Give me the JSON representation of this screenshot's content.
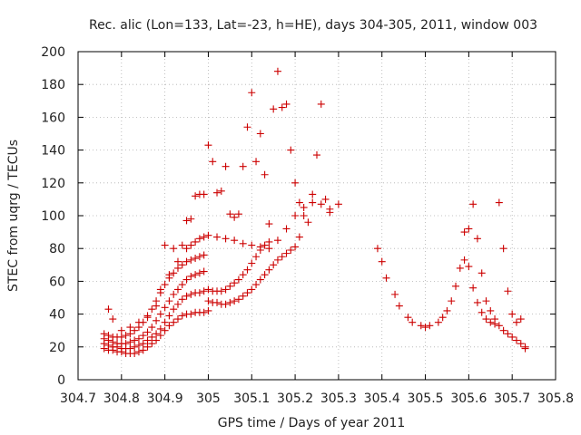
{
  "chart_data": {
    "type": "scatter",
    "title": "Rec. alic (Lon=133, Lat=-23, h=HE), days 304-305, 2011, window 003",
    "xlabel": "GPS time / Days of year 2011",
    "ylabel": "STEC from uqrg / TECUs",
    "xlim": [
      304.7,
      305.8
    ],
    "ylim": [
      0,
      200
    ],
    "xticks": [
      304.7,
      304.8,
      304.9,
      305,
      305.1,
      305.2,
      305.3,
      305.4,
      305.5,
      305.6,
      305.7,
      305.8
    ],
    "xtick_labels": [
      "304.7",
      "304.8",
      "304.9",
      "305",
      "305.1",
      "305.2",
      "305.3",
      "305.4",
      "305.5",
      "305.6",
      "305.7",
      "305.8"
    ],
    "yticks": [
      0,
      20,
      40,
      60,
      80,
      100,
      120,
      140,
      160,
      180,
      200
    ],
    "ytick_labels": [
      "0",
      "20",
      "40",
      "60",
      "80",
      "100",
      "120",
      "140",
      "160",
      "180",
      "200"
    ],
    "grid": true,
    "marker": "plus",
    "color": "#cc0000",
    "series": [
      {
        "x": [
          304.76,
          304.77,
          304.78,
          304.79,
          304.8,
          304.81,
          304.82,
          304.83,
          304.84,
          304.85,
          304.86,
          304.87,
          304.88,
          304.89,
          304.9,
          304.91,
          304.92,
          304.93,
          304.94,
          304.95,
          304.96,
          304.97,
          304.98,
          304.99,
          305.0
        ],
        "y": [
          19,
          18,
          18,
          17,
          17,
          16,
          16,
          16,
          17,
          18,
          20,
          22,
          24,
          27,
          30,
          33,
          35,
          37,
          39,
          40,
          40,
          41,
          41,
          41,
          42
        ]
      },
      {
        "x": [
          304.76,
          304.77,
          304.78,
          304.79,
          304.8,
          304.81,
          304.82,
          304.83,
          304.84,
          304.85,
          304.86,
          304.87,
          304.88,
          304.89,
          304.9,
          304.91,
          304.92,
          304.93,
          304.94,
          304.95,
          304.96,
          304.97,
          304.98,
          304.99
        ],
        "y": [
          22,
          21,
          20,
          20,
          19,
          19,
          19,
          20,
          21,
          22,
          24,
          26,
          28,
          31,
          35,
          39,
          43,
          46,
          49,
          51,
          52,
          53,
          53,
          54
        ]
      },
      {
        "x": [
          304.76,
          304.77,
          304.78,
          304.79,
          304.8,
          304.81,
          304.82,
          304.83,
          304.84,
          304.85,
          304.86,
          304.87,
          304.88,
          304.89,
          304.9,
          304.91,
          304.92,
          304.93,
          304.94,
          304.95,
          304.96,
          304.97,
          304.98,
          304.99
        ],
        "y": [
          25,
          24,
          23,
          22,
          22,
          22,
          23,
          24,
          25,
          27,
          29,
          32,
          36,
          40,
          44,
          48,
          52,
          55,
          58,
          61,
          63,
          64,
          65,
          66
        ]
      },
      {
        "x": [
          304.76,
          304.77,
          304.78,
          304.79,
          304.8,
          304.81,
          304.82,
          304.83,
          304.84,
          304.85,
          304.86,
          304.87,
          304.88,
          304.89,
          304.9,
          304.91,
          304.92,
          304.93,
          304.94,
          304.95,
          304.96,
          304.97,
          304.98,
          304.99
        ],
        "y": [
          28,
          27,
          26,
          26,
          26,
          27,
          28,
          30,
          32,
          35,
          39,
          43,
          48,
          53,
          58,
          62,
          65,
          68,
          70,
          72,
          73,
          74,
          75,
          76
        ]
      },
      {
        "x": [
          304.77,
          304.78,
          304.8,
          304.82,
          304.84,
          304.86,
          304.88,
          304.89,
          304.91,
          304.93,
          304.95,
          304.96,
          304.97,
          304.98,
          304.99,
          305.0,
          305.02,
          305.04,
          305.06,
          305.08,
          305.1,
          305.12,
          305.14,
          305.16,
          305.18,
          305.2,
          305.22,
          305.24,
          305.26,
          305.28,
          305.3
        ],
        "y": [
          43,
          37,
          30,
          32,
          35,
          38,
          45,
          55,
          64,
          72,
          80,
          82,
          84,
          86,
          87,
          88,
          87,
          86,
          85,
          83,
          82,
          81,
          80,
          85,
          92,
          100,
          105,
          108,
          107,
          104,
          107
        ]
      },
      {
        "x": [
          304.9,
          304.92,
          304.94,
          304.95,
          304.96,
          304.97,
          304.98,
          304.99,
          305.0,
          305.01,
          305.02,
          305.03,
          305.04,
          305.05,
          305.06,
          305.07,
          305.08,
          305.09,
          305.1,
          305.11,
          305.12,
          305.13,
          305.14,
          305.15,
          305.16,
          305.17,
          305.18,
          305.19,
          305.2,
          305.21,
          305.22,
          305.23,
          305.24,
          305.25,
          305.26,
          305.27,
          305.28
        ],
        "y": [
          82,
          80,
          82,
          97,
          98,
          112,
          113,
          113,
          143,
          133,
          114,
          115,
          130,
          101,
          99,
          101,
          130,
          154,
          175,
          133,
          150,
          125,
          95,
          165,
          188,
          166,
          168,
          140,
          120,
          108,
          100,
          96,
          113,
          137,
          168,
          110,
          102
        ]
      },
      {
        "x": [
          305.0,
          305.01,
          305.02,
          305.03,
          305.04,
          305.05,
          305.06,
          305.07,
          305.08,
          305.09,
          305.1,
          305.11,
          305.12,
          305.13,
          305.14,
          305.15,
          305.16,
          305.17,
          305.18,
          305.19,
          305.2,
          305.21
        ],
        "y": [
          48,
          47,
          47,
          46,
          46,
          47,
          48,
          49,
          51,
          53,
          55,
          58,
          61,
          64,
          67,
          70,
          73,
          75,
          77,
          79,
          81,
          87
        ]
      },
      {
        "x": [
          305.0,
          305.01,
          305.02,
          305.03,
          305.04,
          305.05,
          305.06,
          305.07,
          305.08,
          305.09,
          305.1,
          305.11,
          305.12,
          305.13,
          305.14
        ],
        "y": [
          55,
          54,
          54,
          54,
          55,
          57,
          59,
          61,
          64,
          67,
          71,
          75,
          79,
          82,
          84
        ]
      },
      {
        "x": [
          305.39,
          305.4,
          305.41,
          305.43,
          305.44,
          305.46,
          305.47,
          305.49,
          305.5,
          305.51,
          305.53,
          305.54,
          305.55,
          305.56,
          305.57,
          305.58,
          305.59,
          305.6,
          305.61,
          305.62,
          305.63,
          305.64,
          305.65,
          305.66,
          305.67,
          305.68,
          305.69,
          305.7,
          305.71,
          305.72,
          305.73
        ],
        "y": [
          80,
          72,
          62,
          52,
          45,
          38,
          35,
          33,
          32,
          33,
          35,
          38,
          42,
          48,
          57,
          68,
          90,
          92,
          107,
          86,
          65,
          48,
          42,
          37,
          33,
          30,
          28,
          26,
          24,
          22,
          20
        ]
      },
      {
        "x": [
          305.59,
          305.6,
          305.61,
          305.62,
          305.63,
          305.64,
          305.65,
          305.66,
          305.67,
          305.68,
          305.69,
          305.7,
          305.71,
          305.72,
          305.73
        ],
        "y": [
          73,
          69,
          56,
          47,
          41,
          37,
          35,
          34,
          108,
          80,
          54,
          40,
          35,
          37,
          19
        ]
      }
    ]
  }
}
